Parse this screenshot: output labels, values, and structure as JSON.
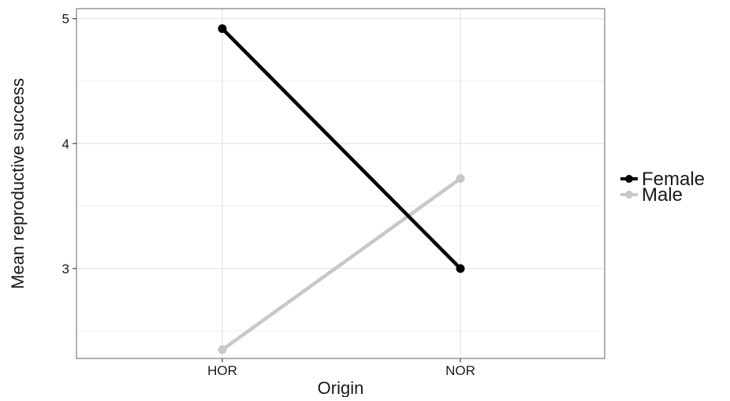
{
  "chart_data": {
    "type": "line",
    "title": "",
    "xlabel": "Origin",
    "ylabel": "Mean reproductive success",
    "categories": [
      "HOR",
      "NOR"
    ],
    "ylim": [
      2.28,
      5.08
    ],
    "yticks": [
      3,
      4,
      5
    ],
    "grid": true,
    "legend_position": "right",
    "series": [
      {
        "name": "Female",
        "color": "#000000",
        "values": [
          4.92,
          3.0
        ]
      },
      {
        "name": "Male",
        "color": "#c8c8c8",
        "values": [
          2.35,
          3.72
        ]
      }
    ]
  }
}
